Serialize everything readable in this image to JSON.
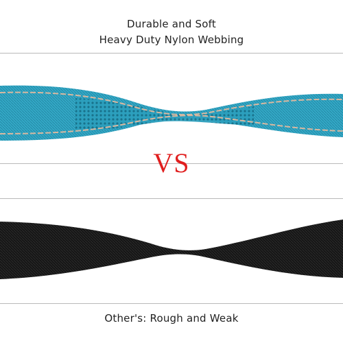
{
  "top_caption": {
    "line1": "Durable and Soft",
    "line2": "Heavy Duty Nylon Webbing"
  },
  "divider_label": {
    "text": "VS",
    "color": "#e01f1f"
  },
  "bottom_caption": {
    "text": "Other's: Rough and Weak"
  },
  "straps": {
    "top": {
      "color": "#2fa6c4",
      "stitch_color": "#d9b8a0",
      "pattern": "mesh-with-reflective-stitching"
    },
    "bottom": {
      "color": "#141414",
      "pattern": "plain-weave"
    }
  }
}
